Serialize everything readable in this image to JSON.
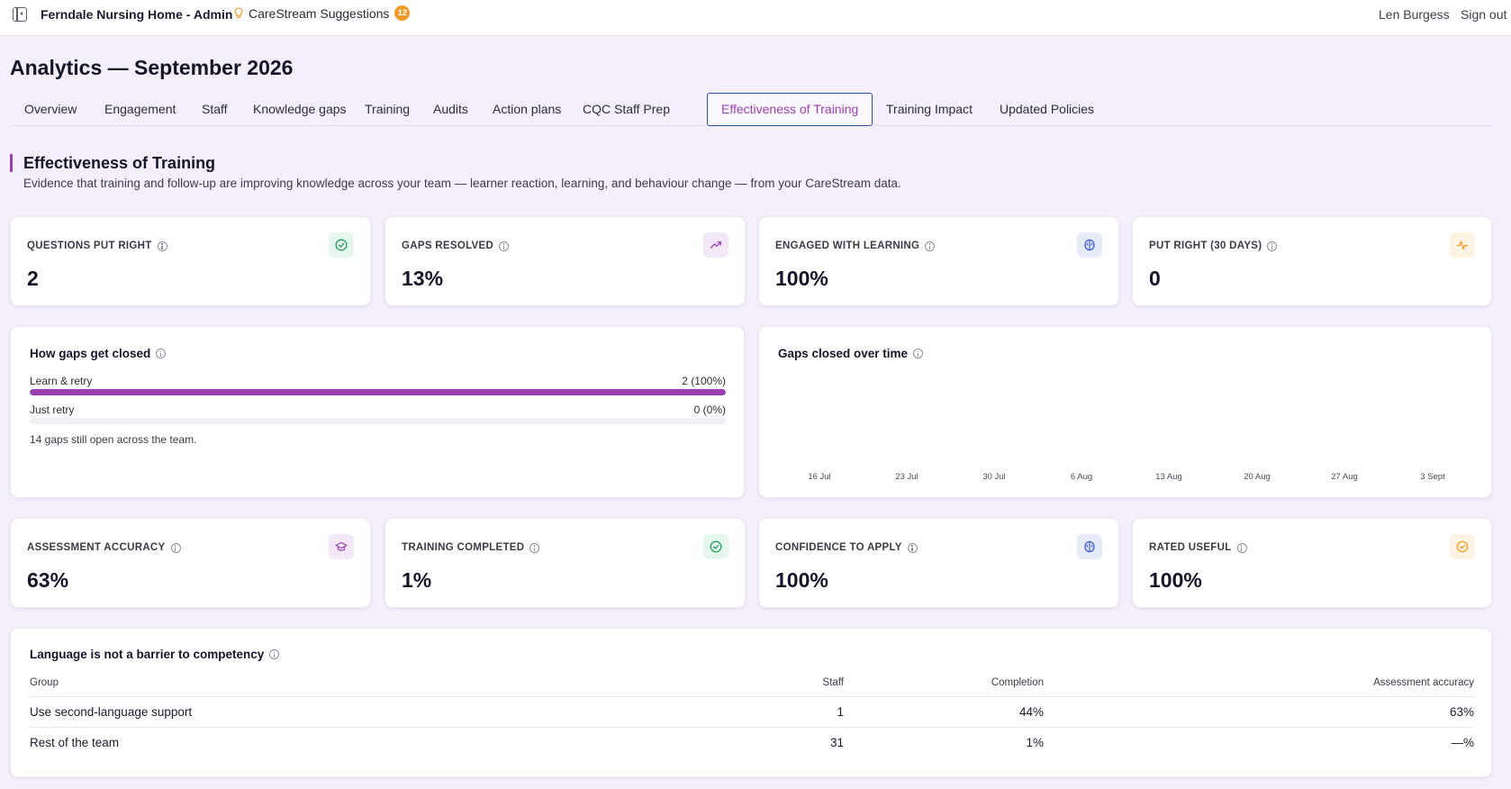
{
  "topbar": {
    "app_title": "Ferndale Nursing Home - Admin",
    "suggestions_label": "CareStream Suggestions",
    "suggestions_count": "12",
    "user_name": "Len Burgess",
    "sign_out": "Sign out"
  },
  "page_title": "Analytics — September 2026",
  "tabs": [
    {
      "label": "Overview"
    },
    {
      "label": "Engagement"
    },
    {
      "label": "Staff"
    },
    {
      "label": "Knowledge gaps"
    },
    {
      "label": "Training"
    },
    {
      "label": "Audits"
    },
    {
      "label": "Action plans"
    },
    {
      "label": "CQC Staff Prep"
    },
    {
      "label": "Effectiveness of Training",
      "active": true
    },
    {
      "label": "Training Impact"
    },
    {
      "label": "Updated Policies"
    }
  ],
  "section": {
    "title": "Effectiveness of Training",
    "description": "Evidence that training and follow-up are improving knowledge across your team — learner reaction, learning, and behaviour change — from your CareStream data."
  },
  "stats_top": [
    {
      "label": "QUESTIONS PUT RIGHT",
      "value": "2",
      "icon": "check-circle-icon",
      "color": "#22a05a"
    },
    {
      "label": "GAPS RESOLVED",
      "value": "13%",
      "icon": "trending-up-icon",
      "color": "#9a3fb0"
    },
    {
      "label": "ENGAGED WITH LEARNING",
      "value": "100%",
      "icon": "brain-icon",
      "color": "#3b5bd0"
    },
    {
      "label": "PUT RIGHT (30 DAYS)",
      "value": "0",
      "icon": "activity-icon",
      "color": "#f29a28"
    }
  ],
  "gaps_closed": {
    "title": "How gaps get closed",
    "rows": [
      {
        "label": "Learn & retry",
        "value": "2 (100%)",
        "fraction": 1.0
      },
      {
        "label": "Just retry",
        "value": "0 (0%)",
        "fraction": 0.0
      }
    ],
    "note": "14 gaps still open across the team."
  },
  "gaps_over_time": {
    "title": "Gaps closed over time",
    "x_labels": [
      "16 Jul",
      "23 Jul",
      "30 Jul",
      "6 Aug",
      "13 Aug",
      "20 Aug",
      "27 Aug",
      "3 Sept"
    ]
  },
  "stats_bottom": [
    {
      "label": "ASSESSMENT ACCURACY",
      "value": "63%",
      "icon": "graduation-cap-icon",
      "color": "#9a3fb0"
    },
    {
      "label": "TRAINING COMPLETED",
      "value": "1%",
      "icon": "check-circle-icon",
      "color": "#22a05a"
    },
    {
      "label": "CONFIDENCE TO APPLY",
      "value": "100%",
      "icon": "brain-icon",
      "color": "#3b5bd0"
    },
    {
      "label": "RATED USEFUL",
      "value": "100%",
      "icon": "badge-check-icon",
      "color": "#f29a28"
    }
  ],
  "language_table": {
    "title": "Language is not a barrier to competency",
    "columns": [
      "Group",
      "Staff",
      "Completion",
      "Assessment accuracy"
    ],
    "rows": [
      {
        "group": "Use second-language support",
        "staff": "1",
        "completion": "44%",
        "accuracy": "63%"
      },
      {
        "group": "Rest of the team",
        "staff": "31",
        "completion": "1%",
        "accuracy": "—%"
      }
    ]
  }
}
